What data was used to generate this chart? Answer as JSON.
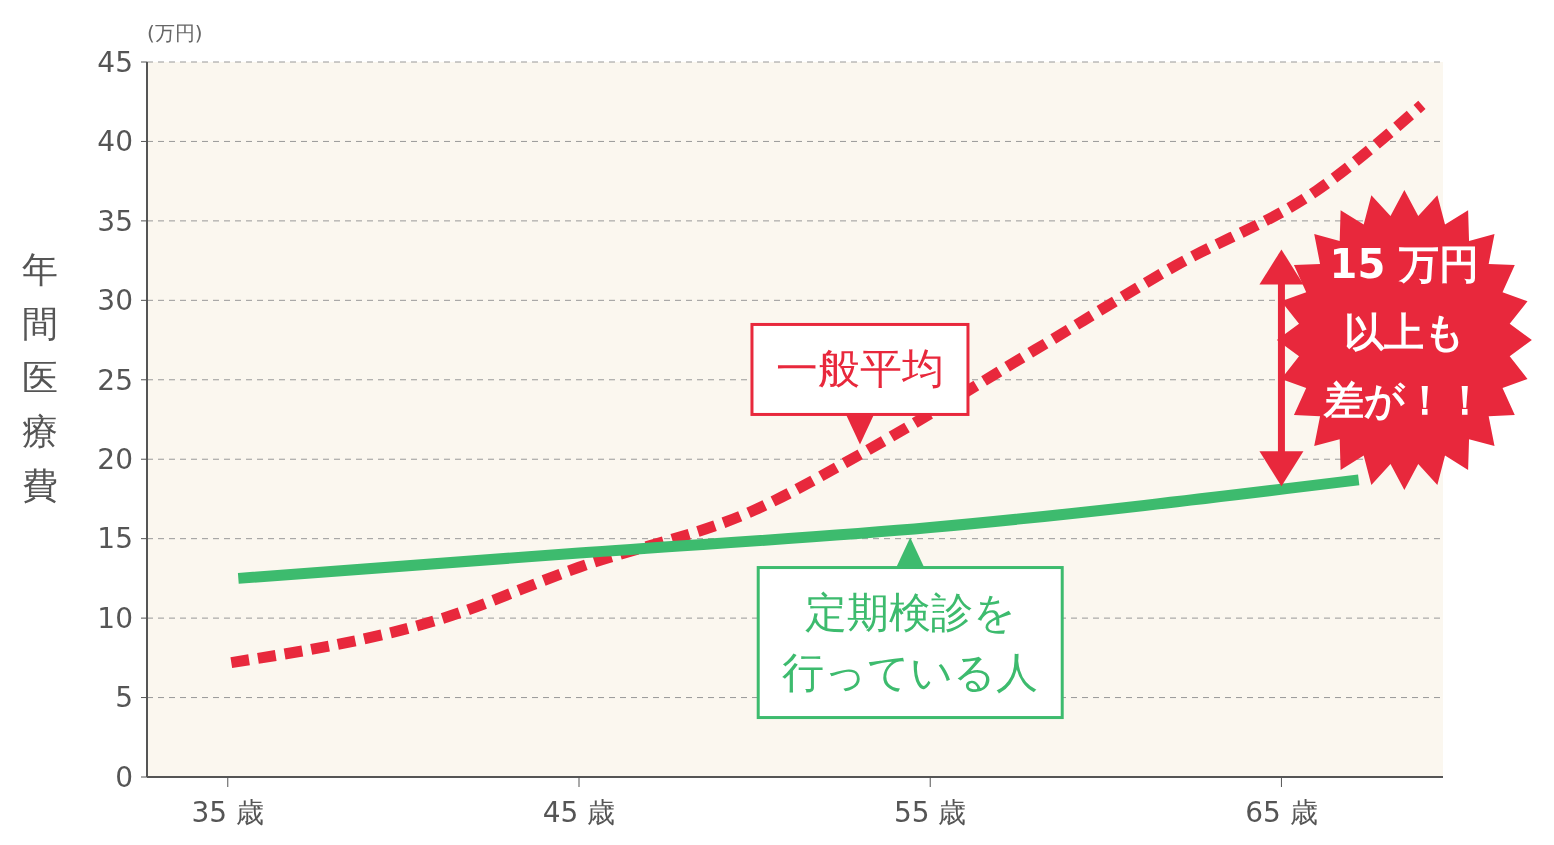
{
  "chart_data": {
    "type": "line",
    "ylabel": "年間医療費",
    "xlim": [
      32.7,
      69.6
    ],
    "xticks": [
      {
        "value": 35,
        "label": "35 歳"
      },
      {
        "value": 45,
        "label": "45 歳"
      },
      {
        "value": 55,
        "label": "55 歳"
      },
      {
        "value": 65,
        "label": "65 歳"
      }
    ],
    "ylim": [
      0,
      45
    ],
    "yticks": [
      0,
      5,
      10,
      15,
      20,
      25,
      30,
      35,
      40,
      45
    ],
    "grid": "y",
    "series": [
      {
        "name": "一般平均",
        "color": "#e8283c",
        "line_style": "dashed",
        "x": [
          35.1,
          41,
          45,
          50,
          53,
          58,
          62,
          66,
          69
        ],
        "values": [
          7.2,
          9.9,
          13.2,
          16.8,
          20.3,
          26.9,
          32.2,
          36.9,
          42.3
        ]
      },
      {
        "name": "定期検診を行っている人",
        "color": "#3dbb6e",
        "line_style": "solid",
        "x": [
          35.3,
          45,
          55,
          67.2
        ],
        "values": [
          12.5,
          14.1,
          15.7,
          18.7
        ]
      }
    ],
    "annotations": [
      "(万円)",
      "15 万円",
      "以上も",
      "差が！！"
    ]
  }
}
